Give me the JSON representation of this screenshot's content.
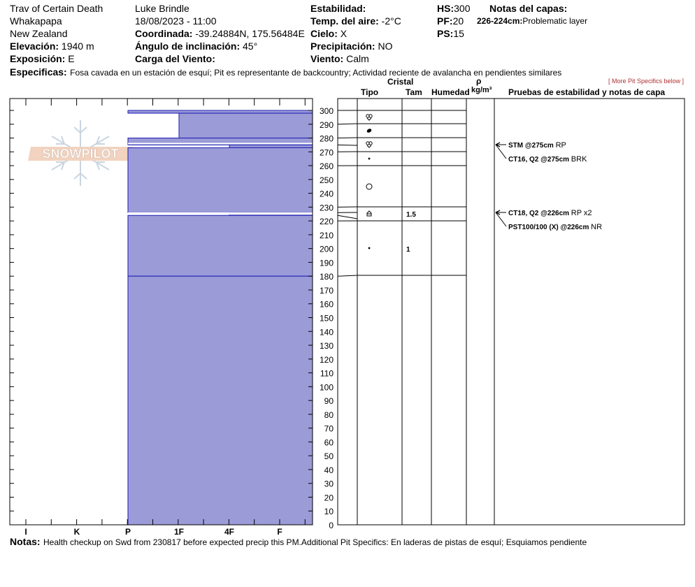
{
  "header": {
    "location_name": "Trav of Certain Death",
    "region": "Whakapapa",
    "country": "New Zealand",
    "elevation_label": "Elevación:",
    "elevation_value": "1940 m",
    "aspect_label": "Exposición:",
    "aspect_value": "E",
    "observer": "Luke Brindle",
    "datetime": "18/08/2023 - 11:00",
    "coord_label": "Coordinada:",
    "coord_value": "-39.24884N, 175.56484E",
    "slope_label": "Ángulo de inclinación:",
    "slope_value": "45°",
    "wind_load_label": "Carga del Viento:",
    "wind_load_value": "",
    "stability_label": "Estabilidad:",
    "stability_value": "",
    "air_temp_label": "Temp. del aire:",
    "air_temp_value": "-2°C",
    "sky_label": "Cielo:",
    "sky_value": "X",
    "precip_label": "Precipitación:",
    "precip_value": "NO",
    "wind_label": "Viento:",
    "wind_value": "Calm",
    "hs_label": "HS:",
    "hs_value": "300",
    "pf_label": "PF:",
    "pf_value": "20",
    "ps_label": "PS:",
    "ps_value": "15",
    "layer_notes_title": "Notas del capas:",
    "layer_note_range": "226-224cm:",
    "layer_note_text": "Problematic layer",
    "specifics_label": "Especificas:",
    "specifics_text": "Fosa cavada en un estación de esquí; Pit es representante de backcountry; Actividad reciente de avalancha en pendientes similares",
    "more_specifics_link": "[ More Pit Specifics below ]",
    "logo_text": "SNOWPILOT"
  },
  "columns": {
    "crystal": "Cristal",
    "type": "Tipo",
    "size": "Tam",
    "moisture": "Humedad",
    "rho": "ρ",
    "density_unit": "kg/m³",
    "stability_tests": "Pruebas de estabilidad y notas de capa"
  },
  "notes": {
    "label": "Notas:",
    "text": "Health checkup on Swd from 230817 before expected precip this PM.Additional Pit Specifics: En laderas de pistas de esquí; Esquiamos pendiente"
  },
  "chart_data": {
    "type": "bar",
    "title": "",
    "ylabel": "",
    "depth_ticks": [
      300,
      290,
      280,
      270,
      260,
      250,
      240,
      230,
      220,
      210,
      200,
      190,
      180,
      170,
      160,
      150,
      140,
      130,
      120,
      110,
      100,
      90,
      80,
      70,
      60,
      50,
      40,
      30,
      20,
      10,
      0
    ],
    "ylim": [
      0,
      300
    ],
    "hardness_scale": [
      "I",
      "K",
      "P",
      "1F",
      "4F",
      "F"
    ],
    "hardness_layers": [
      {
        "top": 300,
        "bottom": 298,
        "hardness": "P"
      },
      {
        "top": 298,
        "bottom": 280,
        "hardness": "1F"
      },
      {
        "top": 280,
        "bottom": 275,
        "hardness": "P"
      },
      {
        "top": 275,
        "bottom": 273,
        "hardness": "4F"
      },
      {
        "top": 273,
        "bottom": 226,
        "hardness": "P"
      },
      {
        "top": 226,
        "bottom": 224,
        "hardness": "4F"
      },
      {
        "top": 224,
        "bottom": 180,
        "hardness": "P"
      },
      {
        "top": 180,
        "bottom": 0,
        "hardness": "P"
      }
    ],
    "layer_boundaries": [
      300,
      290,
      280,
      275,
      270,
      260,
      230,
      226,
      224,
      220,
      180
    ],
    "grain_symbols": [
      {
        "depth": 295,
        "symbol": "mixed-forms"
      },
      {
        "depth": 285,
        "symbol": "ice-formation"
      },
      {
        "depth": 275,
        "symbol": "mixed-forms"
      },
      {
        "depth": 265,
        "symbol": "precip-particle"
      },
      {
        "depth": 245,
        "symbol": "rounded-grains"
      },
      {
        "depth": 225,
        "symbol": "depth-hoar"
      },
      {
        "depth": 200,
        "symbol": "precip-particle"
      }
    ],
    "grain_sizes": [
      {
        "depth": 225,
        "value": "1.5"
      },
      {
        "depth": 200,
        "value": "1"
      }
    ],
    "stability_tests": [
      {
        "depth": 275,
        "code": "STM @275cm",
        "result": "RP"
      },
      {
        "depth": 275,
        "code": "CT16, Q2 @275cm",
        "result": "BRK"
      },
      {
        "depth": 226,
        "code": "CT18, Q2 @226cm",
        "result": "RP x2"
      },
      {
        "depth": 226,
        "code": "PST100/100 (X) @226cm",
        "result": "NR"
      }
    ]
  }
}
